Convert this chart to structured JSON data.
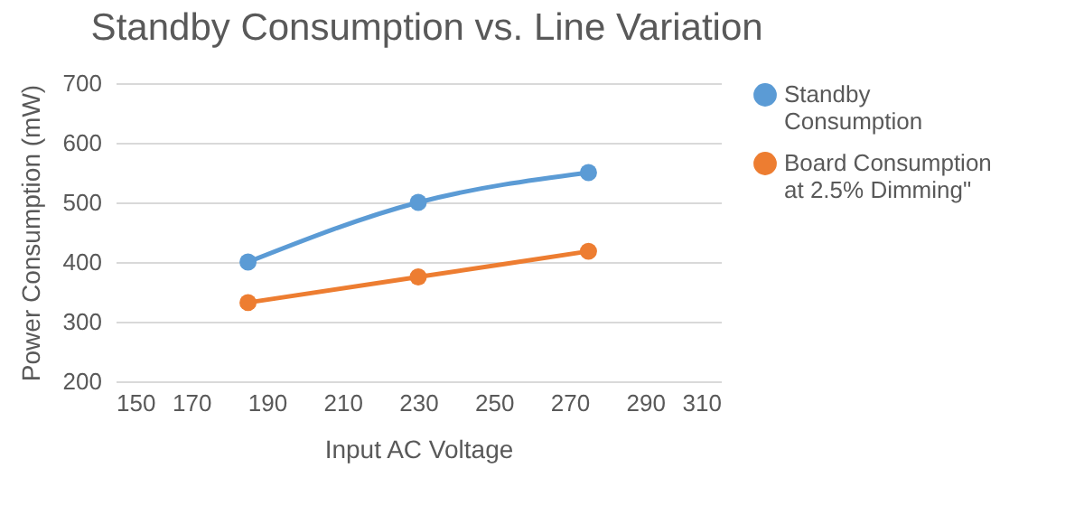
{
  "chart_data": {
    "type": "line",
    "title": "Standby Consumption vs. Line Variation",
    "xlabel": "Input AC Voltage",
    "ylabel": "Power Consumption (mW)",
    "x": [
      185,
      230,
      275
    ],
    "series": [
      {
        "name": "Standby Consumption",
        "color": "#5b9bd5",
        "values": [
          400,
          500,
          550
        ]
      },
      {
        "name": "Board Consumption at 2.5% Dimming\"",
        "color": "#ed7d31",
        "values": [
          332,
          375,
          418
        ]
      }
    ],
    "xlim": [
      150,
      310
    ],
    "xticks": [
      150,
      170,
      190,
      210,
      230,
      250,
      270,
      290,
      310
    ],
    "ylim": [
      200,
      700
    ],
    "yticks": [
      200,
      300,
      400,
      500,
      600,
      700
    ],
    "grid": "y",
    "legend": "right",
    "marker": "circle",
    "line_style": "solid"
  }
}
